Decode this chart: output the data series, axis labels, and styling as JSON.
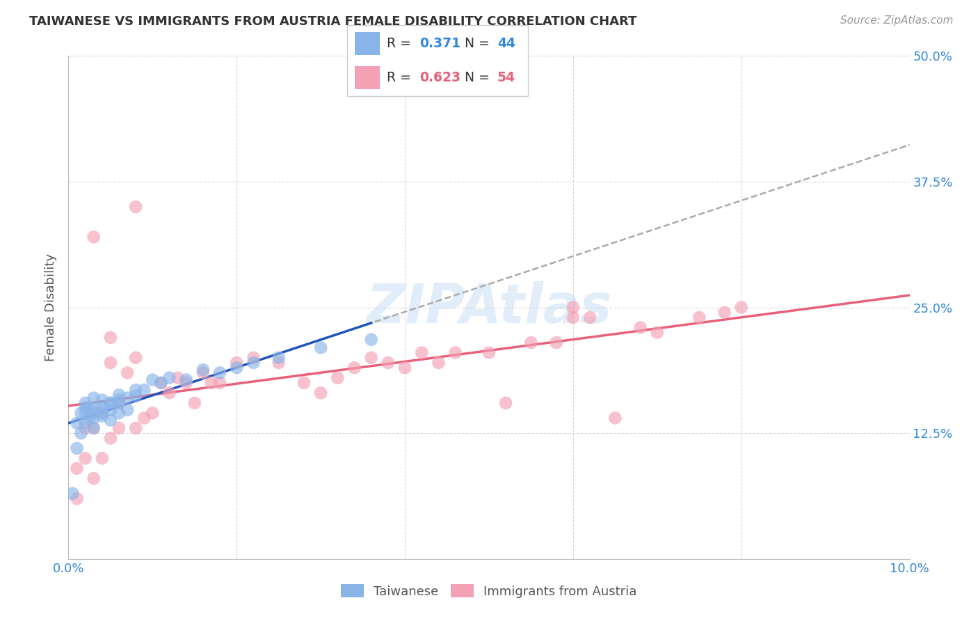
{
  "title": "TAIWANESE VS IMMIGRANTS FROM AUSTRIA FEMALE DISABILITY CORRELATION CHART",
  "source": "Source: ZipAtlas.com",
  "ylabel": "Female Disability",
  "watermark": "ZIPAtlas",
  "xlim": [
    0.0,
    0.1
  ],
  "ylim": [
    0.0,
    0.5
  ],
  "xticks": [
    0.0,
    0.02,
    0.04,
    0.06,
    0.08,
    0.1
  ],
  "xtick_labels": [
    "0.0%",
    "",
    "",
    "",
    "",
    "10.0%"
  ],
  "ytick_labels": [
    "",
    "12.5%",
    "25.0%",
    "37.5%",
    "50.0%"
  ],
  "yticks": [
    0.0,
    0.125,
    0.25,
    0.375,
    0.5
  ],
  "taiwanese_R": 0.371,
  "taiwanese_N": 44,
  "austria_R": 0.623,
  "austria_N": 54,
  "taiwanese_color": "#89b4e8",
  "austria_color": "#f4a0b5",
  "regression_taiwanese_color": "#2255bb",
  "regression_austria_color": "#e8607a",
  "background_color": "#ffffff",
  "grid_color": "#d8d8d8",
  "taiwan_x": [
    0.0005,
    0.001,
    0.001,
    0.0015,
    0.0015,
    0.002,
    0.002,
    0.002,
    0.002,
    0.0025,
    0.0025,
    0.003,
    0.003,
    0.003,
    0.003,
    0.003,
    0.004,
    0.004,
    0.004,
    0.004,
    0.005,
    0.005,
    0.005,
    0.005,
    0.006,
    0.006,
    0.006,
    0.006,
    0.007,
    0.007,
    0.008,
    0.008,
    0.009,
    0.01,
    0.011,
    0.012,
    0.014,
    0.016,
    0.018,
    0.02,
    0.022,
    0.025,
    0.03,
    0.036
  ],
  "taiwan_y": [
    0.065,
    0.11,
    0.135,
    0.125,
    0.145,
    0.135,
    0.145,
    0.155,
    0.15,
    0.14,
    0.15,
    0.145,
    0.14,
    0.13,
    0.15,
    0.16,
    0.145,
    0.15,
    0.158,
    0.142,
    0.155,
    0.155,
    0.148,
    0.138,
    0.158,
    0.163,
    0.155,
    0.145,
    0.16,
    0.148,
    0.162,
    0.168,
    0.168,
    0.178,
    0.175,
    0.18,
    0.178,
    0.188,
    0.185,
    0.19,
    0.195,
    0.2,
    0.21,
    0.218
  ],
  "austria_x": [
    0.001,
    0.001,
    0.002,
    0.002,
    0.003,
    0.003,
    0.004,
    0.004,
    0.005,
    0.005,
    0.006,
    0.006,
    0.007,
    0.008,
    0.008,
    0.009,
    0.01,
    0.011,
    0.012,
    0.013,
    0.014,
    0.015,
    0.016,
    0.017,
    0.018,
    0.02,
    0.022,
    0.025,
    0.028,
    0.03,
    0.032,
    0.034,
    0.036,
    0.038,
    0.04,
    0.042,
    0.044,
    0.046,
    0.05,
    0.052,
    0.055,
    0.058,
    0.06,
    0.062,
    0.065,
    0.068,
    0.07,
    0.075,
    0.078,
    0.08,
    0.003,
    0.005,
    0.008,
    0.06
  ],
  "austria_y": [
    0.06,
    0.09,
    0.1,
    0.13,
    0.08,
    0.13,
    0.1,
    0.145,
    0.12,
    0.195,
    0.13,
    0.155,
    0.185,
    0.13,
    0.2,
    0.14,
    0.145,
    0.175,
    0.165,
    0.18,
    0.175,
    0.155,
    0.185,
    0.175,
    0.175,
    0.195,
    0.2,
    0.195,
    0.175,
    0.165,
    0.18,
    0.19,
    0.2,
    0.195,
    0.19,
    0.205,
    0.195,
    0.205,
    0.205,
    0.155,
    0.215,
    0.215,
    0.25,
    0.24,
    0.14,
    0.23,
    0.225,
    0.24,
    0.245,
    0.25,
    0.32,
    0.22,
    0.35,
    0.24
  ]
}
